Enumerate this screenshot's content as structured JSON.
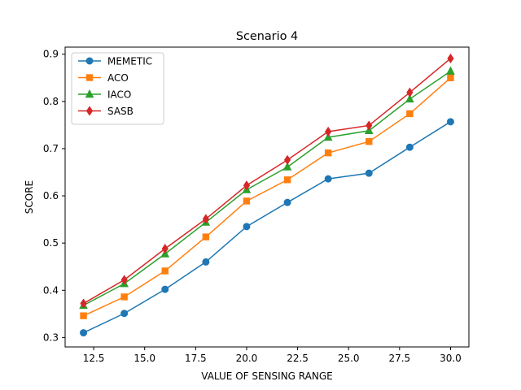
{
  "chart_data": {
    "type": "line",
    "title": "Scenario 4",
    "xlabel": "VALUE OF SENSING RANGE",
    "ylabel": "SCORE",
    "x": [
      12,
      14,
      16,
      18,
      20,
      22,
      24,
      26,
      28,
      30
    ],
    "xlim": [
      11.1,
      30.9
    ],
    "ylim": [
      0.28,
      0.915
    ],
    "xticks": [
      12.5,
      15.0,
      17.5,
      20.0,
      22.5,
      25.0,
      27.5,
      30.0
    ],
    "xtick_labels": [
      "12.5",
      "15.0",
      "17.5",
      "20.0",
      "22.5",
      "25.0",
      "27.5",
      "30.0"
    ],
    "yticks": [
      0.3,
      0.4,
      0.5,
      0.6,
      0.7,
      0.8,
      0.9
    ],
    "ytick_labels": [
      "0.3",
      "0.4",
      "0.5",
      "0.6",
      "0.7",
      "0.8",
      "0.9"
    ],
    "grid": false,
    "legend_position": "top-left",
    "series": [
      {
        "name": "MEMETIC",
        "color": "#1f77b4",
        "marker": "circle",
        "values": [
          0.31,
          0.351,
          0.402,
          0.46,
          0.535,
          0.586,
          0.636,
          0.648,
          0.703,
          0.757
        ]
      },
      {
        "name": "ACO",
        "color": "#ff7f0e",
        "marker": "square",
        "values": [
          0.346,
          0.386,
          0.441,
          0.513,
          0.589,
          0.634,
          0.691,
          0.715,
          0.774,
          0.85
        ]
      },
      {
        "name": "IACO",
        "color": "#2ca02c",
        "marker": "triangle",
        "values": [
          0.368,
          0.414,
          0.477,
          0.544,
          0.613,
          0.661,
          0.724,
          0.738,
          0.805,
          0.864
        ]
      },
      {
        "name": "SASB",
        "color": "#d62728",
        "marker": "diamond",
        "values": [
          0.372,
          0.422,
          0.488,
          0.551,
          0.622,
          0.676,
          0.736,
          0.749,
          0.819,
          0.891
        ]
      }
    ]
  }
}
